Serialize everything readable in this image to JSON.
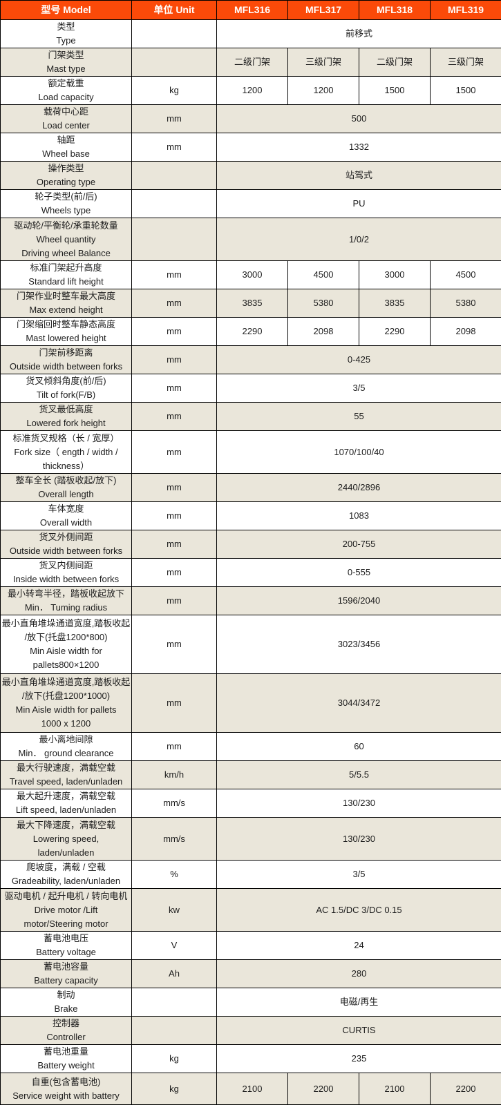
{
  "colors": {
    "header_bg": "#fb4a09",
    "header_text": "#ffffff",
    "alt_row_bg": "#eae6da",
    "border": "#000000",
    "text": "#1c1c1c"
  },
  "header": {
    "columns": [
      "型号 Model",
      "单位 Unit",
      "MFL316",
      "MFL317",
      "MFL318",
      "MFL319"
    ]
  },
  "rows": [
    {
      "label": [
        "类型",
        "Type"
      ],
      "unit": "",
      "values": [
        "前移式"
      ]
    },
    {
      "label": [
        "门架类型",
        "Mast type"
      ],
      "unit": "",
      "values": [
        "二级门架",
        "三级门架",
        "二级门架",
        "三级门架"
      ]
    },
    {
      "label": [
        "额定载重",
        "Load capacity"
      ],
      "unit": "kg",
      "values": [
        "1200",
        "1200",
        "1500",
        "1500"
      ]
    },
    {
      "label": [
        "载荷中心距",
        "Load center"
      ],
      "unit": "mm",
      "values": [
        "500"
      ]
    },
    {
      "label": [
        "轴距",
        "Wheel base"
      ],
      "unit": "mm",
      "values": [
        "1332"
      ]
    },
    {
      "label": [
        "操作类型",
        "Operating type"
      ],
      "unit": "",
      "values": [
        "站驾式"
      ]
    },
    {
      "label": [
        "轮子类型(前/后)",
        "Wheels type"
      ],
      "unit": "",
      "values": [
        "PU"
      ]
    },
    {
      "label": [
        "驱动轮/平衡轮/承重轮数量",
        "Wheel quantity",
        "Driving wheel Balance"
      ],
      "unit": "",
      "values": [
        "1/0/2"
      ]
    },
    {
      "label": [
        "标准门架起升高度",
        "Standard lift height"
      ],
      "unit": "mm",
      "values": [
        "3000",
        "4500",
        "3000",
        "4500"
      ]
    },
    {
      "label": [
        "门架作业时整车最大高度",
        "Max extend height"
      ],
      "unit": "mm",
      "values": [
        "3835",
        "5380",
        "3835",
        "5380"
      ]
    },
    {
      "label": [
        "门架缩回时整车静态高度",
        "Mast lowered height"
      ],
      "unit": "mm",
      "values": [
        "2290",
        "2098",
        "2290",
        "2098"
      ]
    },
    {
      "label": [
        "门架前移距离",
        "Outside width between forks"
      ],
      "unit": "mm",
      "values": [
        "0-425"
      ]
    },
    {
      "label": [
        "货叉倾斜角度(前/后)",
        "Tilt of fork(F/B)"
      ],
      "unit": "mm",
      "values": [
        "3/5"
      ]
    },
    {
      "label": [
        "货叉最低高度",
        "Lowered fork height"
      ],
      "unit": "mm",
      "values": [
        "55"
      ]
    },
    {
      "label": [
        "标准货叉规格（长 / 宽厚）",
        "Fork size（ ength / width /",
        "thickness）"
      ],
      "unit": "mm",
      "values": [
        "1070/100/40"
      ]
    },
    {
      "label": [
        "整车全长 (踏板收起/放下)",
        "Overall length"
      ],
      "unit": "mm",
      "values": [
        "2440/2896"
      ]
    },
    {
      "label": [
        "车体宽度",
        "Overall width"
      ],
      "unit": "mm",
      "values": [
        "1083"
      ]
    },
    {
      "label": [
        "货叉外侧间距",
        "Outside width between forks"
      ],
      "unit": "mm",
      "values": [
        "200-755"
      ]
    },
    {
      "label": [
        "货叉内侧间距",
        "Inside width between forks"
      ],
      "unit": "mm",
      "values": [
        "0-555"
      ]
    },
    {
      "label": [
        "最小转弯半径，踏板收起放下",
        "Min． Tuming radius"
      ],
      "unit": "mm",
      "values": [
        "1596/2040"
      ]
    },
    {
      "label": [
        "最小直角堆垛通道宽度,踏板收起",
        "/放下(托盘1200*800)",
        "Min Aisle width for",
        "pallets800×1200"
      ],
      "unit": "mm",
      "values": [
        "3023/3456"
      ]
    },
    {
      "label": [
        "最小直角堆垛通道宽度,踏板收起",
        "/放下(托盘1200*1000)",
        "Min Aisle width for pallets",
        "1000 x 1200"
      ],
      "unit": "mm",
      "values": [
        "3044/3472"
      ]
    },
    {
      "label": [
        "最小离地间隙",
        "Min． ground clearance"
      ],
      "unit": "mm",
      "values": [
        "60"
      ]
    },
    {
      "label": [
        "最大行驶速度，满载空载",
        "Travel speed, laden/unladen"
      ],
      "unit": "km/h",
      "values": [
        "5/5.5"
      ]
    },
    {
      "label": [
        "最大起升速度，满载空载",
        "Lift speed, laden/unladen"
      ],
      "unit": "mm/s",
      "values": [
        "130/230"
      ]
    },
    {
      "label": [
        "最大下降速度，满载空载",
        "Lowering speed,",
        "laden/unladen"
      ],
      "unit": "mm/s",
      "values": [
        "130/230"
      ]
    },
    {
      "label": [
        "爬坡度，满载 / 空载",
        "Gradeability, laden/unladen"
      ],
      "unit": "%",
      "values": [
        "3/5"
      ]
    },
    {
      "label": [
        "驱动电机 / 起升电机 / 转向电机",
        "Drive motor /Lift",
        "motor/Steering motor"
      ],
      "unit": "kw",
      "values": [
        "AC 1.5/DC 3/DC 0.15"
      ]
    },
    {
      "label": [
        "蓄电池电压",
        "Battery voltage"
      ],
      "unit": "V",
      "values": [
        "24"
      ]
    },
    {
      "label": [
        "蓄电池容量",
        "Battery capacity"
      ],
      "unit": "Ah",
      "values": [
        "280"
      ]
    },
    {
      "label": [
        "制动",
        "Brake"
      ],
      "unit": "",
      "values": [
        "电磁/再生"
      ]
    },
    {
      "label": [
        "控制器",
        "Controller"
      ],
      "unit": "",
      "values": [
        "CURTIS"
      ]
    },
    {
      "label": [
        "蓄电池重量",
        "Battery weight"
      ],
      "unit": "kg",
      "values": [
        "235"
      ]
    },
    {
      "label": [
        "自重(包含蓄电池)",
        "Service weight with battery"
      ],
      "unit": "kg",
      "values": [
        "2100",
        "2200",
        "2100",
        "2200"
      ]
    }
  ]
}
